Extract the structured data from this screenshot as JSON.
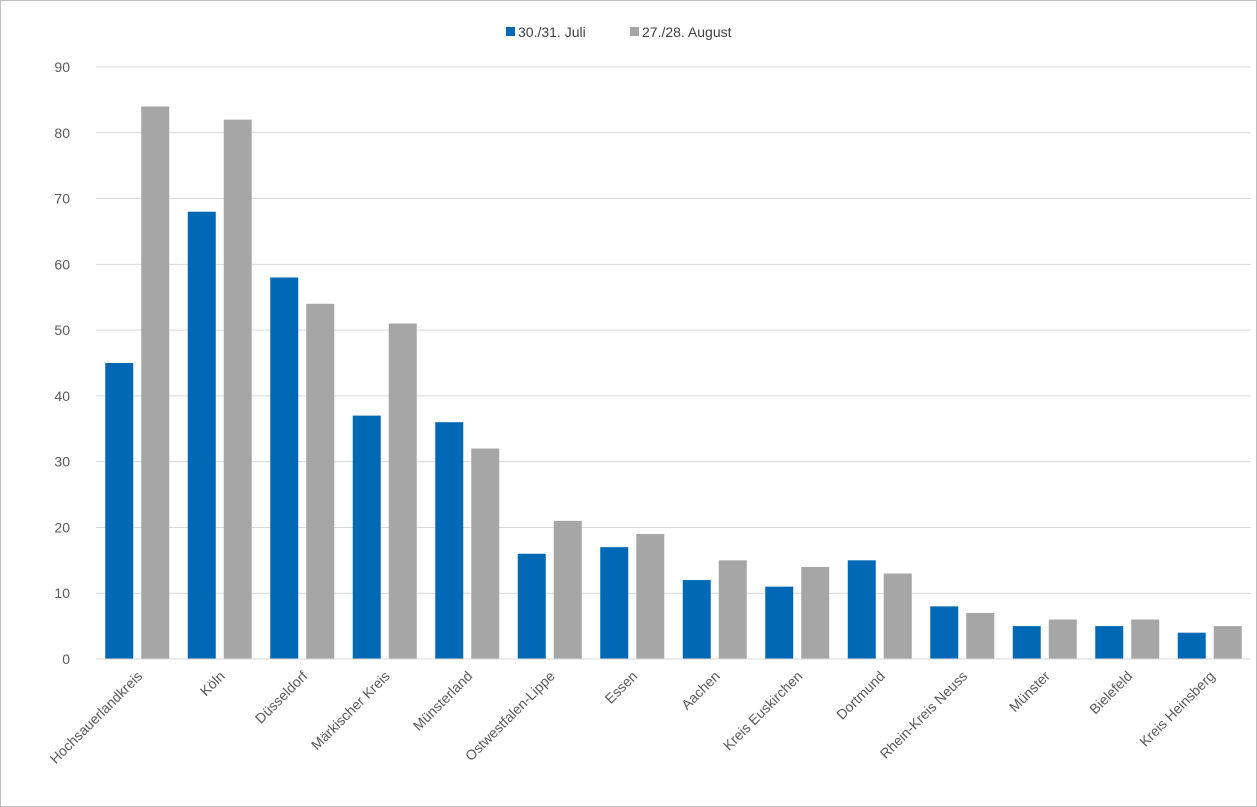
{
  "chart_data": {
    "type": "bar",
    "categories": [
      "Hochsauerlandkreis",
      "Köln",
      "Düsseldorf",
      "Märkischer Kreis",
      "Münsterland",
      "Ostwestfalen-Lippe",
      "Essen",
      "Aachen",
      "Kreis Euskirchen",
      "Dortmund",
      "Rhein-Kreis Neuss",
      "Münster",
      "Bielefeld",
      "Kreis Heinsberg"
    ],
    "series": [
      {
        "name": "30./31. Juli",
        "color": "#0068b4",
        "values": [
          45,
          68,
          58,
          37,
          36,
          16,
          17,
          12,
          11,
          15,
          8,
          5,
          5,
          4
        ]
      },
      {
        "name": "27./28. August",
        "color": "#a6a6a6",
        "values": [
          84,
          82,
          54,
          51,
          32,
          21,
          19,
          15,
          14,
          13,
          7,
          6,
          6,
          5
        ]
      }
    ],
    "title": "",
    "xlabel": "",
    "ylabel": "",
    "ylim": [
      0,
      90
    ],
    "yticks": [
      "0",
      "10",
      "20",
      "30",
      "40",
      "50",
      "60",
      "70",
      "80",
      "90"
    ],
    "grid": true,
    "legend_position": "top-center"
  }
}
